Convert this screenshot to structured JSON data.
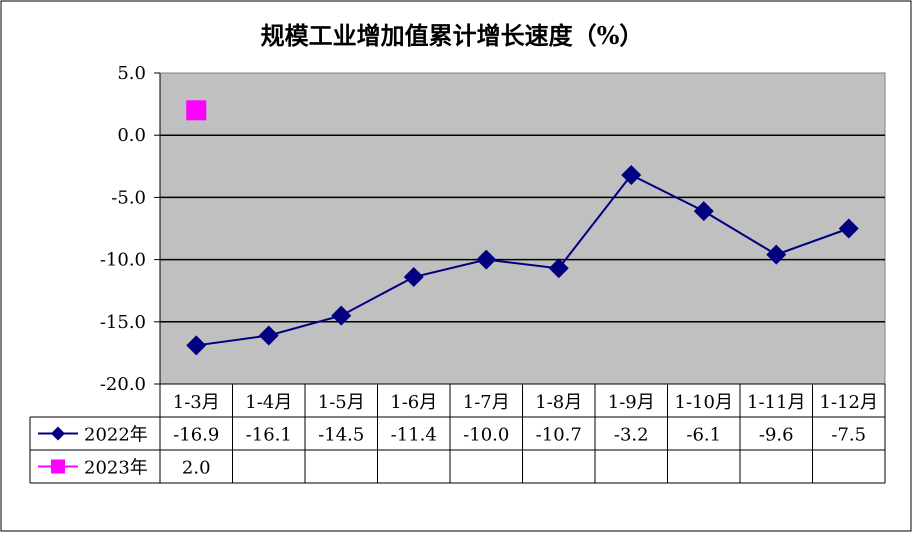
{
  "chart_data": {
    "type": "line",
    "title": "规模工业增加值累计增长速度（%）",
    "xlabel": "",
    "ylabel": "",
    "categories": [
      "1-3月",
      "1-4月",
      "1-5月",
      "1-6月",
      "1-7月",
      "1-8月",
      "1-9月",
      "1-10月",
      "1-11月",
      "1-12月"
    ],
    "ylim": [
      -20,
      5
    ],
    "y_ticks": [
      "5.0",
      "0.0",
      "-5.0",
      "-10.0",
      "-15.0",
      "-20.0"
    ],
    "y_tick_values": [
      5,
      0,
      -5,
      -10,
      -15,
      -20
    ],
    "grid": true,
    "legend": "data-table-bottom",
    "series": [
      {
        "name": "2022年",
        "marker": "diamond",
        "color": "#000080",
        "values": [
          -16.9,
          -16.1,
          -14.5,
          -11.4,
          -10.0,
          -10.7,
          -3.2,
          -6.1,
          -9.6,
          -7.5
        ],
        "labels": [
          "-16.9",
          "-16.1",
          "-14.5",
          "-11.4",
          "-10.0",
          "-10.7",
          "-3.2",
          "-6.1",
          "-9.6",
          "-7.5"
        ]
      },
      {
        "name": "2023年",
        "marker": "square",
        "color": "#ff00ff",
        "values": [
          2.0,
          null,
          null,
          null,
          null,
          null,
          null,
          null,
          null,
          null
        ],
        "labels": [
          "2.0",
          "",
          "",
          "",
          "",
          "",
          "",
          "",
          "",
          ""
        ]
      }
    ],
    "plot_background": "#c0c0c0"
  }
}
